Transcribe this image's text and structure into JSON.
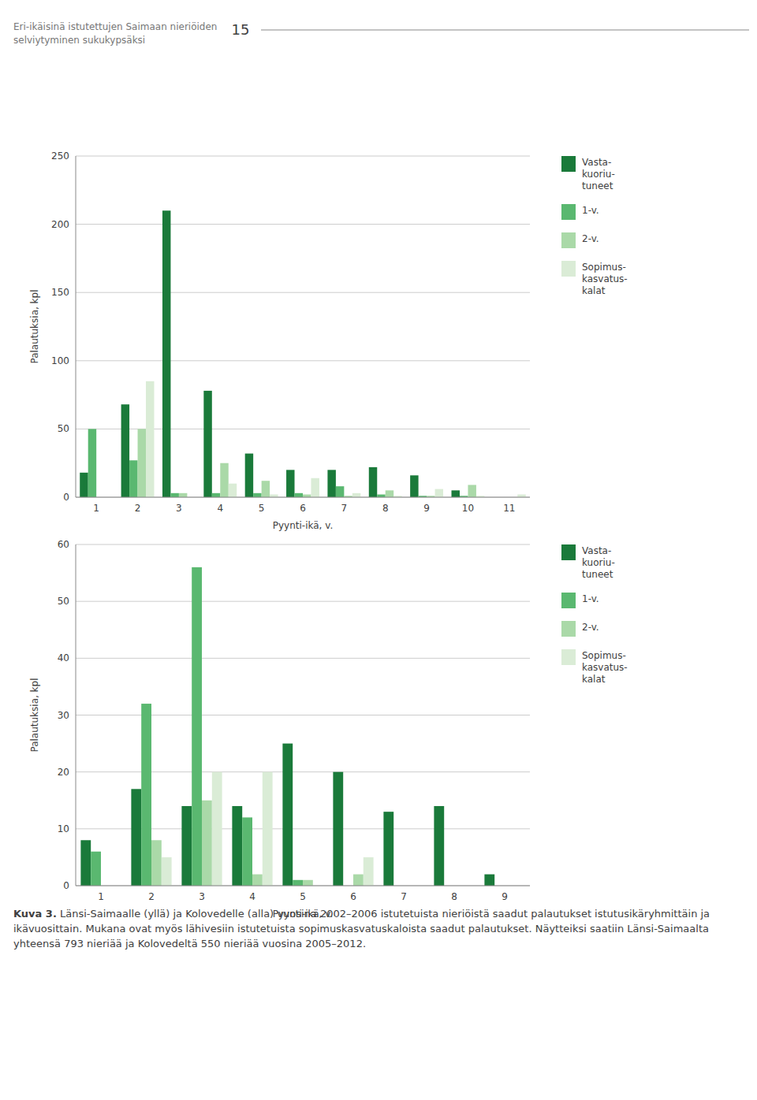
{
  "chart_data": [
    {
      "type": "bar",
      "xlabel": "Pyynti-ikä, v.",
      "ylabel": "Palautuksia, kpl",
      "categories": [
        1,
        2,
        3,
        4,
        5,
        6,
        7,
        8,
        9,
        10,
        11
      ],
      "series": [
        {
          "name": "Vasta-\nkuoriu-\ntuneet",
          "color": "#1a7a3a",
          "values": [
            18,
            68,
            210,
            78,
            32,
            20,
            20,
            22,
            16,
            5,
            0
          ]
        },
        {
          "name": "1-v.",
          "color": "#5ab870",
          "values": [
            50,
            27,
            3,
            3,
            3,
            3,
            8,
            2,
            1,
            1,
            0
          ]
        },
        {
          "name": "2-v.",
          "color": "#aad9a8",
          "values": [
            0,
            50,
            3,
            25,
            12,
            2,
            1,
            5,
            1,
            9,
            0
          ]
        },
        {
          "name": "Sopimus-\nkasvatus-\nkalat",
          "color": "#daecd6",
          "values": [
            0,
            85,
            0,
            10,
            2,
            14,
            3,
            1,
            6,
            1,
            2
          ]
        }
      ],
      "ylim": [
        0,
        250
      ],
      "yticks": [
        0,
        50,
        100,
        150,
        200,
        250
      ],
      "grid": true,
      "legend": "right",
      "annotations": [
        "Eri-ikäisinä istutettujen Saimaan nieriöiden",
        "selviytyminen sukukypsäksi",
        "15"
      ]
    },
    {
      "type": "bar",
      "xlabel": "Pyynti-ikä, v.",
      "ylabel": "Palautuksia, kpl",
      "categories": [
        1,
        2,
        3,
        4,
        5,
        6,
        7,
        8,
        9
      ],
      "series": [
        {
          "name": "Vasta-\nkuoriu-\ntuneet",
          "color": "#1a7a3a",
          "values": [
            8,
            17,
            14,
            14,
            25,
            20,
            13,
            14,
            2
          ]
        },
        {
          "name": "1-v.",
          "color": "#5ab870",
          "values": [
            6,
            32,
            56,
            12,
            1,
            0,
            0,
            0,
            0
          ]
        },
        {
          "name": "2-v.",
          "color": "#aad9a8",
          "values": [
            0,
            8,
            15,
            2,
            1,
            2,
            0,
            0,
            0
          ]
        },
        {
          "name": "Sopimus-\nkasvatus-\nkalat",
          "color": "#daecd6",
          "values": [
            0,
            5,
            20,
            20,
            0,
            5,
            0,
            0,
            0
          ]
        }
      ],
      "ylim": [
        0,
        60
      ],
      "yticks": [
        0,
        10,
        20,
        30,
        40,
        50,
        60
      ],
      "grid": true,
      "legend": "right",
      "annotations": [
        "Kuva 3.",
        "Länsi-Saimaalle (yllä) ja Kolovedelle (alla) vuosina 2002–2006 istutetuista nieriöistä saadut palautukset istutusikäryhmittäin ja ikävuosittain. Mukana ovat myös lähivesiin istutetuista sopimuskasvatuskaloista saadut palautukset. Näytteiksi saatiin Länsi-Saimaalta yhteensä 793 nieriää ja Kolovedeltä 550 nieriää vuosina 2005–2012."
      ]
    }
  ]
}
